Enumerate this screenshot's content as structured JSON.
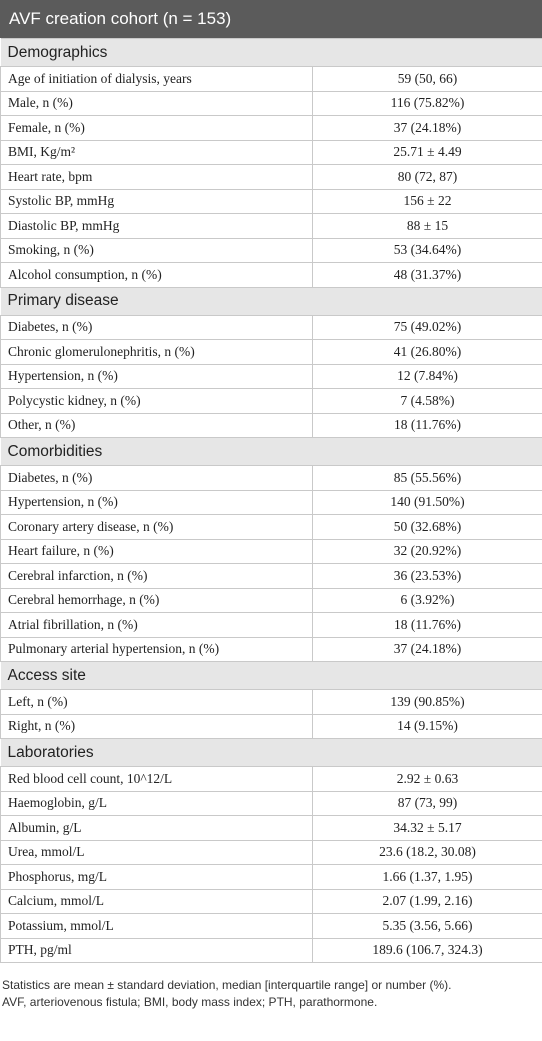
{
  "table": {
    "title": "AVF creation cohort (n = 153)",
    "sections": [
      {
        "heading": "Demographics",
        "rows": [
          [
            "Age of initiation of dialysis, years",
            "59 (50, 66)"
          ],
          [
            "Male, n (%)",
            "116 (75.82%)"
          ],
          [
            "Female, n (%)",
            "37 (24.18%)"
          ],
          [
            "BMI, Kg/m²",
            "25.71 ± 4.49"
          ],
          [
            "Heart rate, bpm",
            "80 (72, 87)"
          ],
          [
            "Systolic BP, mmHg",
            "156 ± 22"
          ],
          [
            "Diastolic BP, mmHg",
            "88 ± 15"
          ],
          [
            "Smoking, n (%)",
            "53 (34.64%)"
          ],
          [
            "Alcohol consumption, n (%)",
            "48 (31.37%)"
          ]
        ]
      },
      {
        "heading": "Primary disease",
        "rows": [
          [
            "Diabetes, n (%)",
            "75 (49.02%)"
          ],
          [
            "Chronic glomerulonephritis, n (%)",
            "41 (26.80%)"
          ],
          [
            "Hypertension, n (%)",
            "12 (7.84%)"
          ],
          [
            "Polycystic kidney, n (%)",
            "7 (4.58%)"
          ],
          [
            "Other, n (%)",
            "18 (11.76%)"
          ]
        ]
      },
      {
        "heading": "Comorbidities",
        "rows": [
          [
            "Diabetes, n (%)",
            "85 (55.56%)"
          ],
          [
            "Hypertension, n (%)",
            "140 (91.50%)"
          ],
          [
            "Coronary artery disease, n (%)",
            "50 (32.68%)"
          ],
          [
            "Heart failure, n (%)",
            "32 (20.92%)"
          ],
          [
            "Cerebral infarction, n (%)",
            "36 (23.53%)"
          ],
          [
            "Cerebral hemorrhage, n (%)",
            "6 (3.92%)"
          ],
          [
            "Atrial fibrillation, n (%)",
            "18 (11.76%)"
          ],
          [
            "Pulmonary arterial hypertension, n (%)",
            "37 (24.18%)"
          ]
        ]
      },
      {
        "heading": "Access site",
        "rows": [
          [
            "Left, n (%)",
            "139 (90.85%)"
          ],
          [
            "Right, n (%)",
            "14 (9.15%)"
          ]
        ]
      },
      {
        "heading": "Laboratories",
        "rows": [
          [
            "Red blood cell count, 10^12/L",
            "2.92 ± 0.63"
          ],
          [
            "Haemoglobin, g/L",
            "87 (73, 99)"
          ],
          [
            "Albumin, g/L",
            "34.32 ± 5.17"
          ],
          [
            "Urea, mmol/L",
            "23.6 (18.2, 30.08)"
          ],
          [
            "Phosphorus, mg/L",
            "1.66 (1.37, 1.95)"
          ],
          [
            "Calcium, mmol/L",
            "2.07 (1.99, 2.16)"
          ],
          [
            "Potassium, mmol/L",
            "5.35 (3.56, 5.66)"
          ],
          [
            "PTH, pg/ml",
            "189.6 (106.7, 324.3)"
          ]
        ]
      }
    ]
  },
  "footnote": [
    "Statistics are mean ± standard deviation, median [interquartile range] or number (%).",
    "AVF, arteriovenous fistula; BMI, body mass index; PTH, parathormone."
  ]
}
